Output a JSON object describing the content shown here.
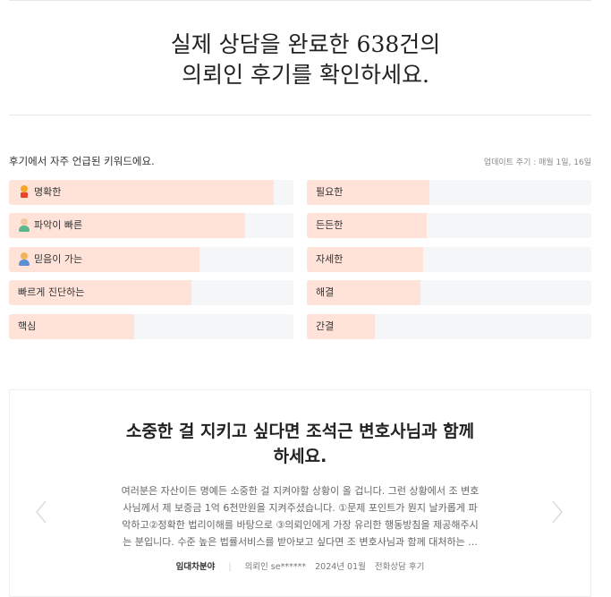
{
  "headline": {
    "line1": "실제 상담을 완료한 638건의",
    "line2": "의뢰인 후기를 확인하세요."
  },
  "keywords": {
    "title": "후기에서 자주 언급된 키워드에요.",
    "update_note": "업데이트 주기 : 매월 1일, 16일",
    "left": [
      {
        "label": "명확한",
        "icon": "award-medal-icon",
        "share": 0.93
      },
      {
        "label": "파악이 빠른",
        "icon": "person-green-icon",
        "share": 0.83
      },
      {
        "label": "믿음이 가는",
        "icon": "person-blue-icon",
        "share": 0.67
      },
      {
        "label": "빠르게 진단하는",
        "icon": "",
        "share": 0.64
      },
      {
        "label": "핵심",
        "icon": "",
        "share": 0.44
      }
    ],
    "right": [
      {
        "label": "필요한",
        "share": 0.43
      },
      {
        "label": "든든한",
        "share": 0.42
      },
      {
        "label": "자세한",
        "share": 0.41
      },
      {
        "label": "해결",
        "share": 0.4
      },
      {
        "label": "간결",
        "share": 0.24
      }
    ]
  },
  "review": {
    "title_line1": "소중한 걸 지키고 싶다면 조석근 변호사님과 함께",
    "title_line2": "하세요.",
    "body_line1": "여러분은 자산이든 명예든 소중한 걸 지켜야할 상황이 올 겁니다. 그런 상황에서 조 변호",
    "body_line2": "사님께서 제 보증금 1억 6천만원을 지켜주셨습니다. ①문제 포인트가 뭔지 날카롭게 파",
    "body_line3": "악하고②정확한 법리이해를 바탕으로 ③의뢰인에게 가장 유리한 행동방침을 제공해주시",
    "body_line4": "는 분입니다. 수준 높은 법률서비스를 받아보고 싶다면 조 변호사님과 함께 대처하는 ...",
    "area": "임대차분야",
    "client": "의뢰인 se******",
    "date": "2024년 01월",
    "type": "전화상담 후기"
  },
  "colors": {
    "bar_fill": "#ffe3d9",
    "bar_track": "#f5f6f8"
  }
}
